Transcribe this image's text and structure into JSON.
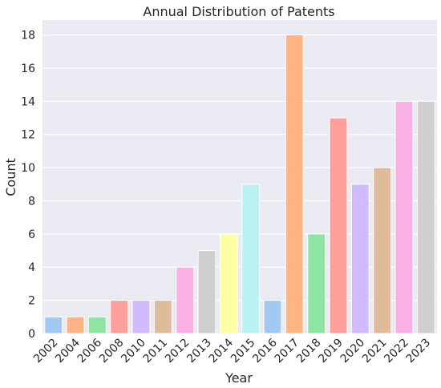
{
  "chart_data": {
    "type": "bar",
    "title": "Annual Distribution of Patents",
    "xlabel": "Year",
    "ylabel": "Count",
    "categories": [
      "2002",
      "2004",
      "2006",
      "2008",
      "2010",
      "2011",
      "2012",
      "2013",
      "2014",
      "2015",
      "2016",
      "2017",
      "2018",
      "2019",
      "2020",
      "2021",
      "2022",
      "2023"
    ],
    "values": [
      1,
      1,
      1,
      2,
      2,
      2,
      4,
      5,
      6,
      9,
      2,
      18,
      6,
      13,
      9,
      10,
      14,
      14
    ],
    "ylim": [
      0,
      18.9
    ],
    "yticks": [
      0,
      2,
      4,
      6,
      8,
      10,
      12,
      14,
      16,
      18
    ],
    "grid": true,
    "colors": [
      "#a1c9f4",
      "#ffb482",
      "#8de5a1",
      "#ff9f9b",
      "#d0bbff",
      "#debb9b",
      "#fab0e4",
      "#cfcfcf",
      "#fffea3",
      "#b9f2f0",
      "#a1c9f4",
      "#ffb482",
      "#8de5a1",
      "#ff9f9b",
      "#d0bbff",
      "#debb9b",
      "#fab0e4",
      "#cfcfcf"
    ],
    "background": "#eaeaf2"
  }
}
